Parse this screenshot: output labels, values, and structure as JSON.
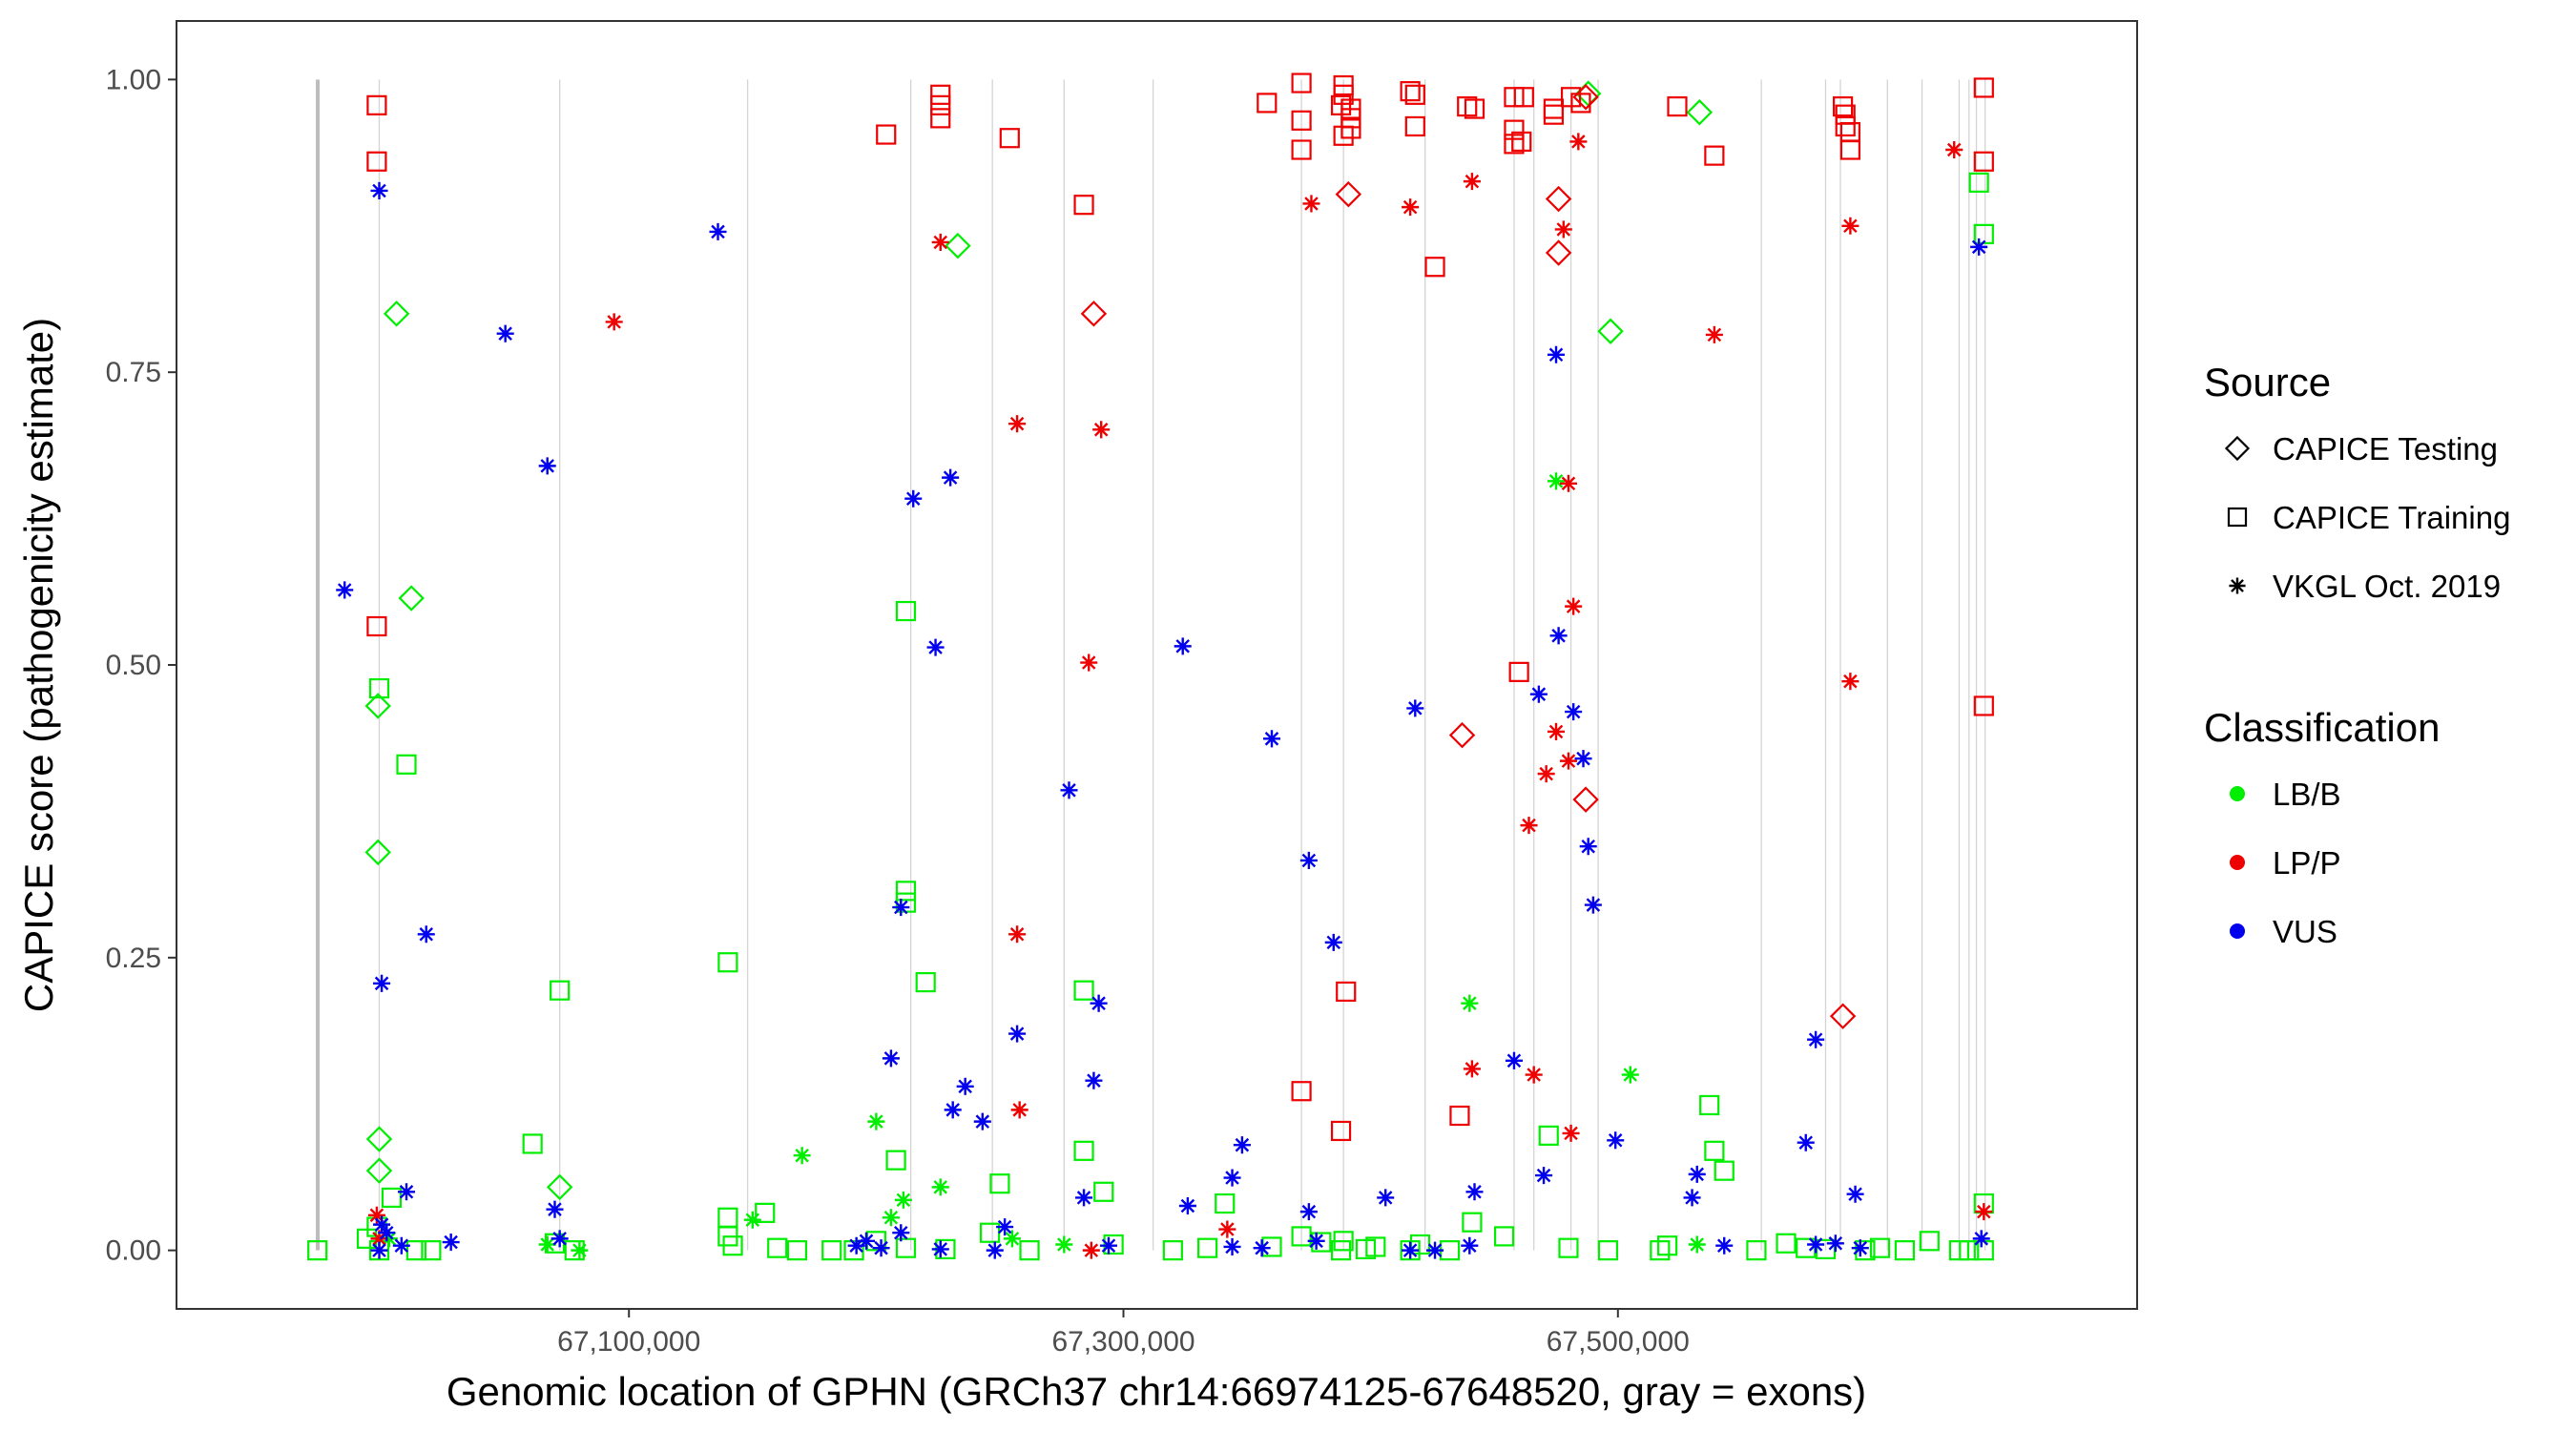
{
  "chart_data": {
    "type": "scatter",
    "title": "",
    "xlabel": "Genomic location of GPHN (GRCh37 chr14:66974125-67648520, gray = exons)",
    "ylabel": "CAPICE score (pathogenicity estimate)",
    "xlim": [
      66917000,
      67710000
    ],
    "ylim": [
      -0.05,
      1.05
    ],
    "x_ticks": [
      67100000,
      67300000,
      67500000
    ],
    "x_tick_labels": [
      "67,100,000",
      "67,300,000",
      "67,500,000"
    ],
    "y_ticks": [
      0.0,
      0.25,
      0.5,
      0.75,
      1.0
    ],
    "y_tick_labels": [
      "0.00",
      "0.25",
      "0.50",
      "0.75",
      "1.00"
    ],
    "grid": false,
    "exons": [
      66974125,
      66999000,
      67072000,
      67148000,
      67214000,
      67247000,
      67276000,
      67312000,
      67372000,
      67389000,
      67422000,
      67458000,
      67466000,
      67481000,
      67492000,
      67558000,
      67584000,
      67590000,
      67609000,
      67623000,
      67638000,
      67642000,
      67645000,
      67648520
    ],
    "colors": {
      "LB/B": "#00ee00",
      "LP/P": "#ee0000",
      "VUS": "#0000ee",
      "exon": "#d4d4d4",
      "exon_gene_start": "#bdbdbd"
    },
    "legend": {
      "placement": "right",
      "source_title": "Source",
      "classification_title": "Classification",
      "source_items": [
        {
          "label": "CAPICE Testing",
          "shape": "diamond"
        },
        {
          "label": "CAPICE Training",
          "shape": "square"
        },
        {
          "label": "VKGL Oct. 2019",
          "shape": "asterisk"
        }
      ],
      "classification_items": [
        {
          "label": "LB/B",
          "color": "#00ee00"
        },
        {
          "label": "LP/P",
          "color": "#ee0000"
        },
        {
          "label": "VUS",
          "color": "#0000ee"
        }
      ]
    },
    "series": [
      {
        "name": "CAPICE Testing",
        "classification": "LB/B",
        "x": [
          66998500,
          67006000,
          67012000,
          66998500,
          66999000,
          66999000,
          67072000,
          67233000,
          67497000,
          67488000,
          67533000
        ],
        "y": [
          0.465,
          0.8,
          0.557,
          0.34,
          0.095,
          0.068,
          0.054,
          0.858,
          0.785,
          0.988,
          0.972
        ]
      },
      {
        "name": "CAPICE Testing",
        "classification": "LP/P",
        "x": [
          67288000,
          67391000,
          67437000,
          67476000,
          67476000,
          67487000,
          67487000,
          67591000
        ],
        "y": [
          0.8,
          0.902,
          0.44,
          0.898,
          0.852,
          0.385,
          0.985,
          0.2
        ]
      },
      {
        "name": "CAPICE Training",
        "classification": "LB/B",
        "x": [
          66974000,
          66999000,
          66998000,
          67010000,
          66999000,
          67072000,
          67061000,
          67140000,
          67140000,
          67140000,
          67155000,
          67168000,
          67191000,
          67212000,
          67212000,
          67208000,
          67212000,
          67212000,
          67220000,
          67250000,
          67284000,
          67284000,
          67292000,
          67341000,
          67372000,
          67389000,
          67402000,
          67416000,
          67441000,
          67472000,
          67517000,
          67537000,
          67539000,
          67543000,
          67576000,
          67584000,
          67600000,
          67626000,
          67642000,
          67646000,
          67648000,
          67648000,
          67648000,
          66994000,
          67004000,
          67014000,
          67020000,
          67070000,
          67078000,
          67142000,
          67160000,
          67182000,
          67200000,
          67228000,
          67246000,
          67262000,
          67296000,
          67320000,
          67334000,
          67360000,
          67380000,
          67388000,
          67398000,
          67420000,
          67432000,
          67454000,
          67480000,
          67496000,
          67520000,
          67556000,
          67568000,
          67606000,
          67616000,
          67638000
        ],
        "y": [
          0.0,
          0.48,
          0.02,
          0.415,
          0.0,
          0.222,
          0.091,
          0.246,
          0.028,
          0.012,
          0.032,
          0.0,
          0.0,
          0.546,
          0.307,
          0.077,
          0.297,
          0.002,
          0.229,
          0.057,
          0.222,
          0.085,
          0.05,
          0.04,
          0.012,
          0.008,
          0.003,
          0.0,
          0.024,
          0.098,
          0.0,
          0.124,
          0.085,
          0.068,
          0.002,
          0.001,
          0.0,
          0.008,
          0.0,
          0.912,
          0.868,
          0.04,
          0.0,
          0.01,
          0.045,
          0.0,
          0.0,
          0.006,
          0.0,
          0.004,
          0.002,
          0.0,
          0.008,
          0.001,
          0.015,
          0.0,
          0.005,
          0.0,
          0.002,
          0.003,
          0.007,
          0.0,
          0.001,
          0.005,
          0.0,
          0.012,
          0.002,
          0.0,
          0.004,
          0.0,
          0.006,
          0.002,
          0.0,
          0.0
        ]
      },
      {
        "name": "CAPICE Training",
        "classification": "LP/P",
        "x": [
          66998000,
          66998000,
          66998000,
          67204000,
          67226000,
          67226000,
          67226000,
          67254000,
          67284000,
          67358000,
          67372000,
          67372000,
          67372000,
          67388000,
          67389000,
          67389000,
          67392000,
          67389000,
          67392000,
          67392000,
          67416000,
          67418000,
          67418000,
          67426000,
          67439000,
          67442000,
          67458000,
          67458000,
          67458000,
          67461000,
          67462000,
          67474000,
          67474000,
          67481000,
          67485000,
          67524000,
          67539000,
          67591000,
          67592000,
          67592000,
          67594000,
          67594000,
          67648000,
          67648000,
          67648000,
          67372000,
          67388000,
          67390000,
          67436000,
          67460000
        ],
        "y": [
          0.978,
          0.93,
          0.533,
          0.953,
          0.987,
          0.978,
          0.967,
          0.95,
          0.893,
          0.98,
          0.997,
          0.965,
          0.94,
          0.978,
          0.995,
          0.987,
          0.967,
          0.952,
          0.975,
          0.958,
          0.99,
          0.96,
          0.987,
          0.84,
          0.977,
          0.975,
          0.985,
          0.957,
          0.945,
          0.947,
          0.985,
          0.975,
          0.97,
          0.985,
          0.98,
          0.977,
          0.935,
          0.977,
          0.97,
          0.96,
          0.955,
          0.94,
          0.993,
          0.93,
          0.465,
          0.136,
          0.102,
          0.221,
          0.115,
          0.494
        ]
      },
      {
        "name": "VKGL Oct. 2019",
        "classification": "LB/B",
        "x": [
          67003000,
          67067000,
          67080000,
          67150000,
          67170000,
          67200000,
          67206000,
          67211000,
          67226000,
          67255000,
          67276000,
          67440000,
          67475000,
          67505000,
          67532000
        ],
        "y": [
          0.01,
          0.005,
          0.0,
          0.026,
          0.081,
          0.11,
          0.028,
          0.043,
          0.054,
          0.01,
          0.005,
          0.211,
          0.657,
          0.15,
          0.005
        ]
      },
      {
        "name": "VKGL Oct. 2019",
        "classification": "LP/P",
        "x": [
          66998000,
          66999000,
          67094000,
          67226000,
          67257000,
          67257000,
          67258000,
          67286000,
          67287000,
          67291000,
          67342000,
          67376000,
          67416000,
          67441000,
          67441000,
          67464000,
          67466000,
          67471000,
          67475000,
          67478000,
          67480000,
          67480000,
          67481000,
          67482000,
          67484000,
          67539000,
          67594000,
          67594000,
          67636000,
          67648000
        ],
        "y": [
          0.03,
          0.01,
          0.793,
          0.861,
          0.706,
          0.27,
          0.12,
          0.502,
          0.0,
          0.701,
          0.018,
          0.894,
          0.891,
          0.913,
          0.155,
          0.363,
          0.15,
          0.407,
          0.443,
          0.872,
          0.655,
          0.418,
          0.1,
          0.55,
          0.947,
          0.782,
          0.875,
          0.486,
          0.94,
          0.033
        ]
      },
      {
        "name": "VKGL Oct. 2019",
        "classification": "VUS",
        "x": [
          66985000,
          66999000,
          67000000,
          67000000,
          67010000,
          67018000,
          67028000,
          67050000,
          67067000,
          67136000,
          67206000,
          67210000,
          67215000,
          67224000,
          67230000,
          67231000,
          67236000,
          67243000,
          67257000,
          67278000,
          67288000,
          67290000,
          67324000,
          67344000,
          67348000,
          67360000,
          67375000,
          67375000,
          67385000,
          67406000,
          67418000,
          67442000,
          67468000,
          67475000,
          67476000,
          67482000,
          67486000,
          67488000,
          67490000,
          67499000,
          67532000,
          67576000,
          67580000,
          67596000,
          67646000,
          67647000,
          66999000,
          67002000,
          67008000,
          67070000,
          67072000,
          67192000,
          67196000,
          67202000,
          67210000,
          67226000,
          67248000,
          67252000,
          67284000,
          67294000,
          67326000,
          67344000,
          67356000,
          67378000,
          67416000,
          67426000,
          67440000,
          67458000,
          67470000,
          67530000,
          67543000,
          67580000,
          67588000,
          67598000
        ],
        "y": [
          0.564,
          0.905,
          0.228,
          0.022,
          0.05,
          0.27,
          0.007,
          0.783,
          0.67,
          0.87,
          0.164,
          0.293,
          0.642,
          0.515,
          0.66,
          0.12,
          0.14,
          0.11,
          0.185,
          0.393,
          0.145,
          0.211,
          0.516,
          0.062,
          0.09,
          0.437,
          0.333,
          0.033,
          0.263,
          0.045,
          0.463,
          0.05,
          0.475,
          0.765,
          0.525,
          0.46,
          0.42,
          0.345,
          0.295,
          0.094,
          0.065,
          0.092,
          0.18,
          0.048,
          0.857,
          0.01,
          0.0,
          0.015,
          0.004,
          0.035,
          0.01,
          0.004,
          0.008,
          0.002,
          0.015,
          0.001,
          0.0,
          0.02,
          0.045,
          0.004,
          0.038,
          0.003,
          0.002,
          0.008,
          0.0,
          0.0,
          0.004,
          0.162,
          0.064,
          0.045,
          0.004,
          0.005,
          0.006,
          0.002
        ]
      }
    ]
  }
}
